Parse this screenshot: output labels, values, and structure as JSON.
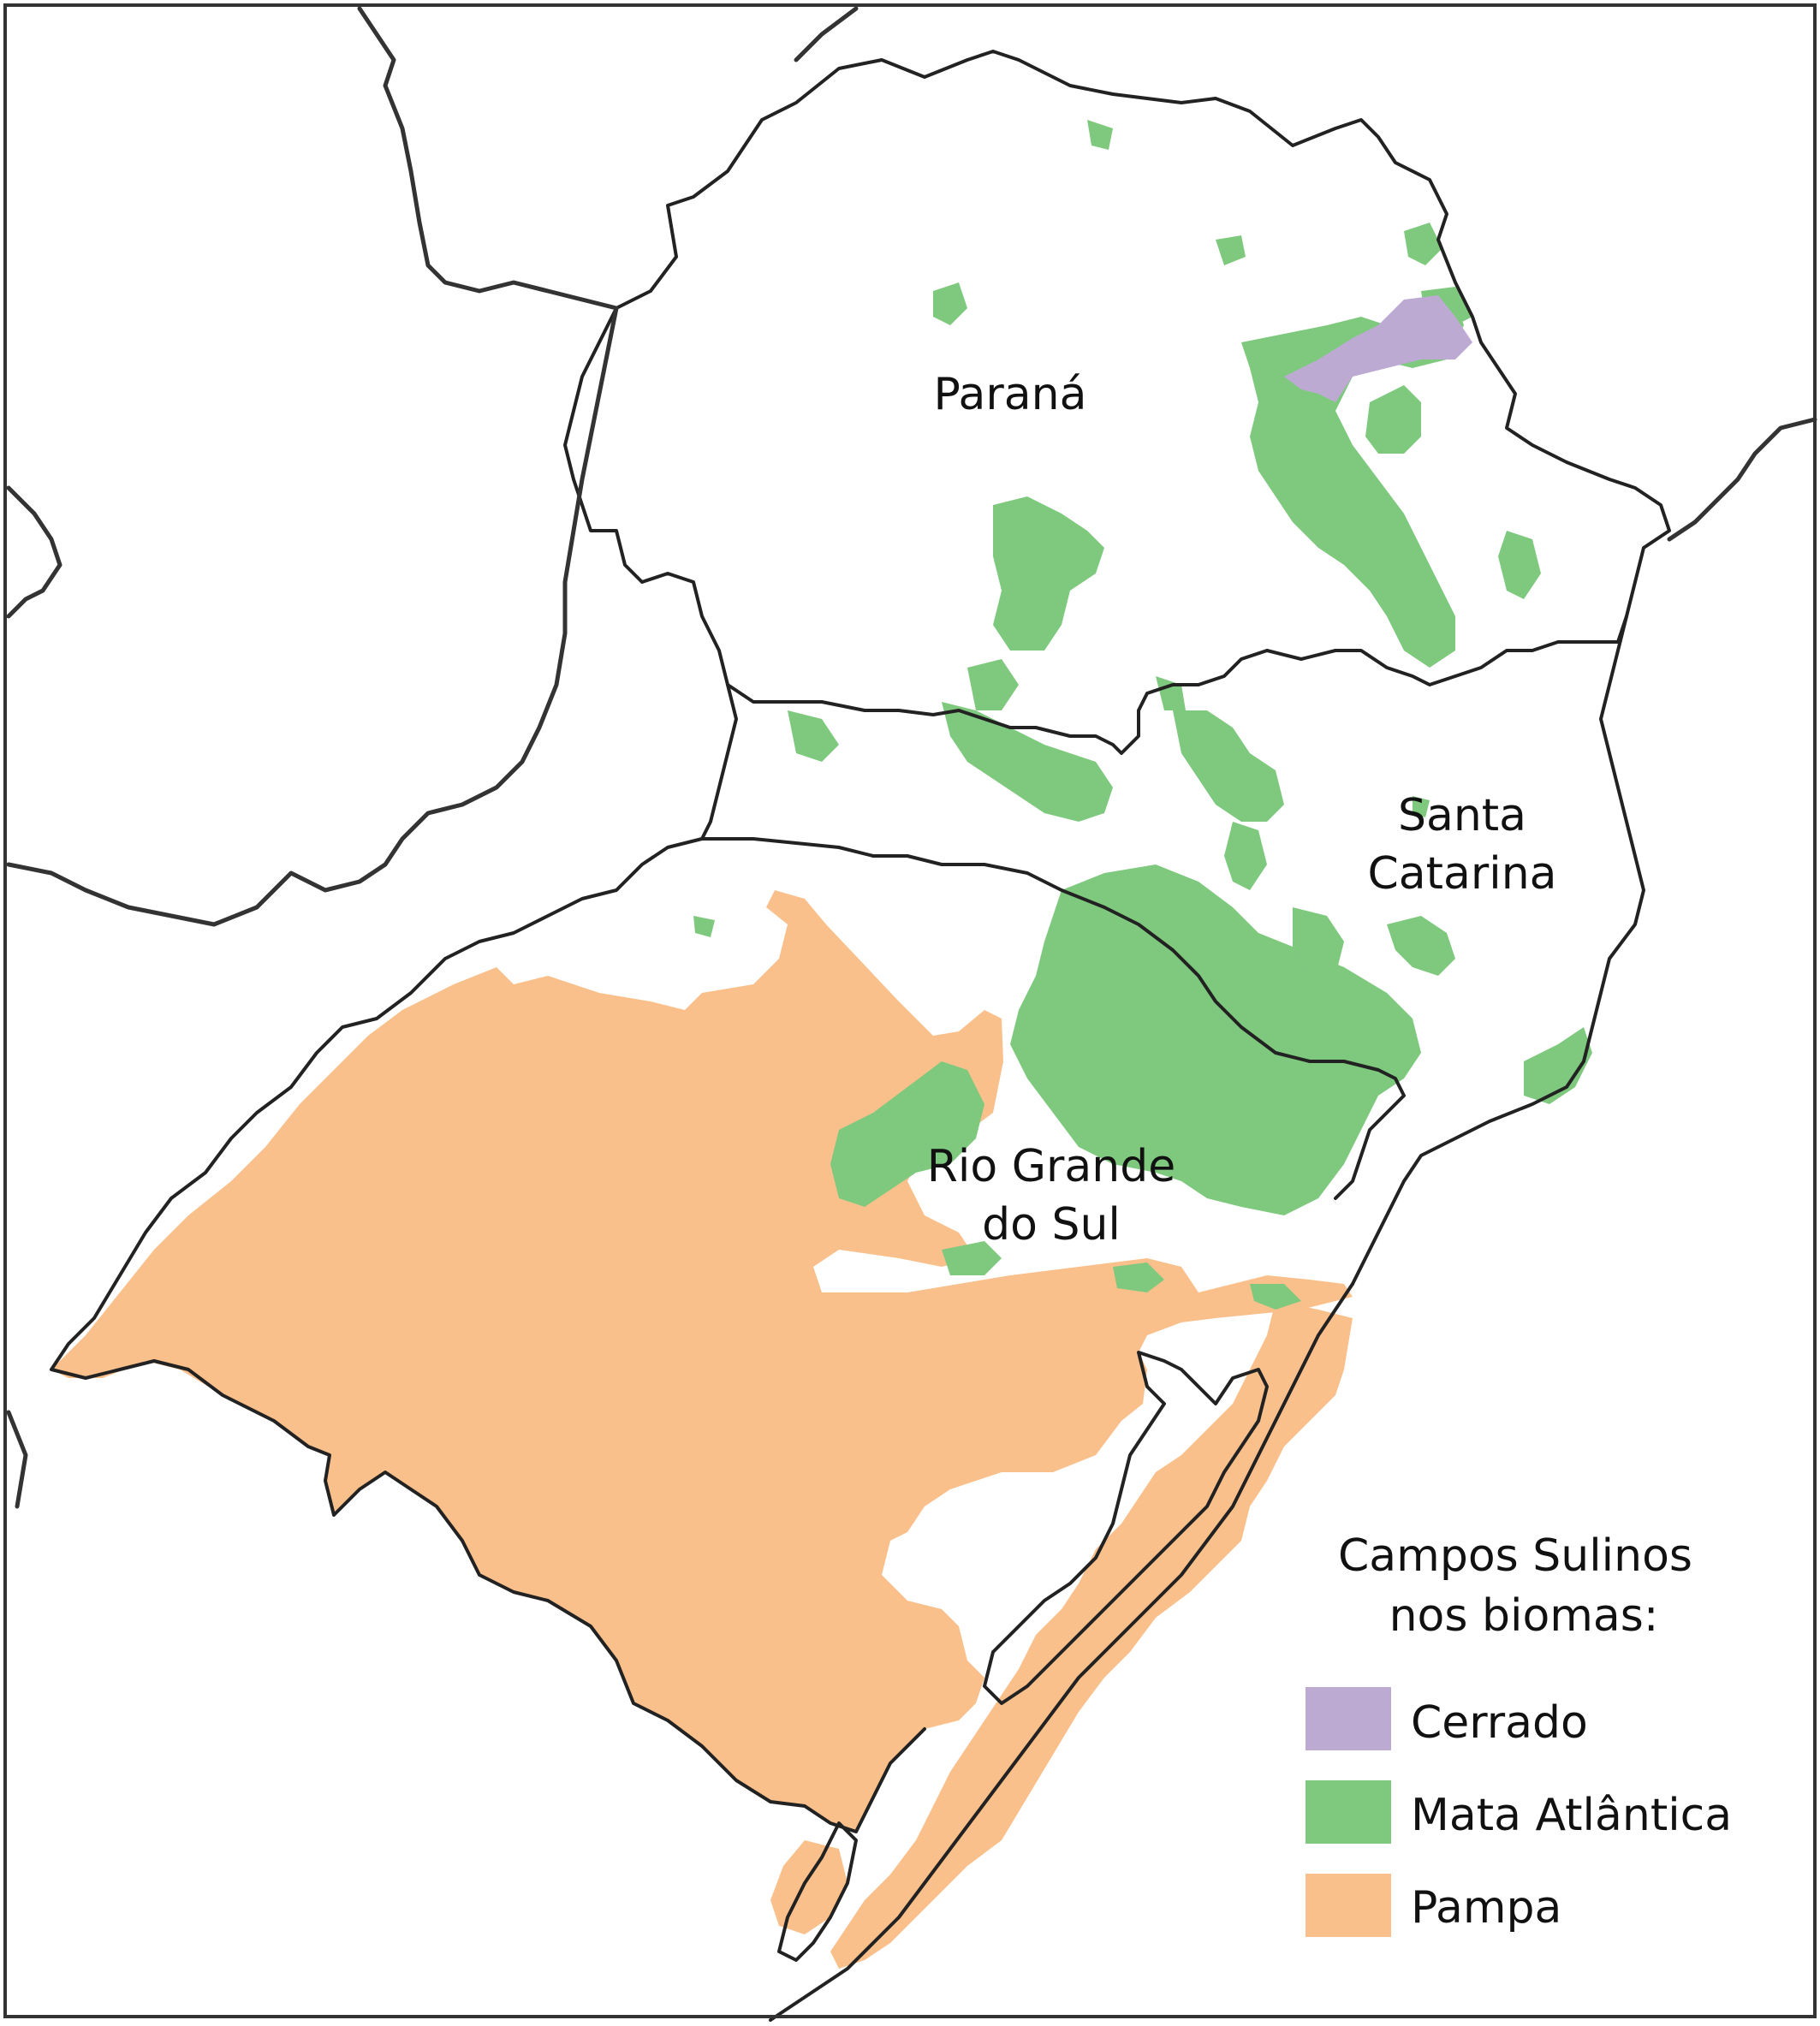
{
  "map": {
    "states": [
      {
        "id": "parana",
        "label": "Paraná"
      },
      {
        "id": "santa-catarina",
        "label_lines": [
          "Santa",
          "Catarina"
        ]
      },
      {
        "id": "rio-grande-do-sul",
        "label_lines": [
          "Rio Grande",
          "do Sul"
        ]
      }
    ]
  },
  "legend": {
    "title_lines": [
      "Campos Sulinos",
      "nos biomas:"
    ],
    "items": [
      {
        "label": "Cerrado",
        "color": "#bcaad3"
      },
      {
        "label": "Mata Atlântica",
        "color": "#7fc97f"
      },
      {
        "label": "Pampa",
        "color": "#f9c08b"
      }
    ]
  },
  "colors": {
    "cerrado": "#bcaad3",
    "mata_atlantica": "#7fc97f",
    "pampa": "#f9c08b",
    "border": "#222222",
    "frame": "#333333",
    "background": "#ffffff"
  }
}
